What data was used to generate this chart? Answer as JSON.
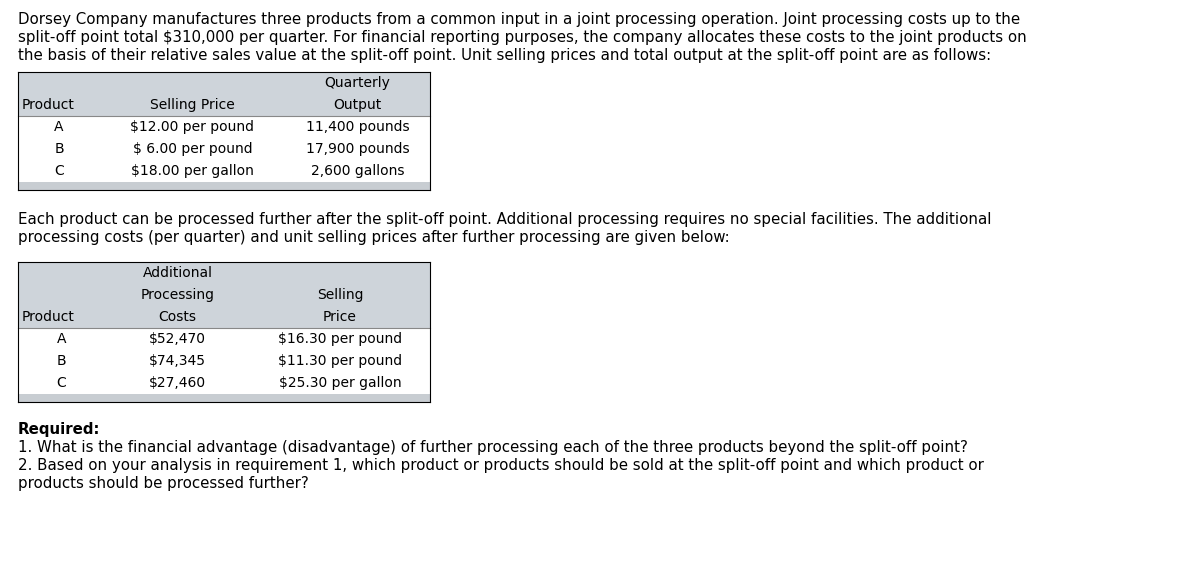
{
  "intro_text_lines": [
    "Dorsey Company manufactures three products from a common input in a joint processing operation. Joint processing costs up to the",
    "split-off point total $310,000 per quarter. For financial reporting purposes, the company allocates these costs to the joint products on",
    "the basis of their relative sales value at the split-off point. Unit selling prices and total output at the split-off point are as follows:"
  ],
  "table1_rows": [
    [
      "A",
      "$12.00 per pound",
      "11,400 pounds"
    ],
    [
      "B",
      "$ 6.00 per pound",
      "17,900 pounds"
    ],
    [
      "C",
      "$18.00 per gallon",
      "2,600 gallons"
    ]
  ],
  "middle_text_lines": [
    "Each product can be processed further after the split-off point. Additional processing requires no special facilities. The additional",
    "processing costs (per quarter) and unit selling prices after further processing are given below:"
  ],
  "table2_rows": [
    [
      "A",
      "$52,470",
      "$16.30 per pound"
    ],
    [
      "B",
      "$74,345",
      "$11.30 per pound"
    ],
    [
      "C",
      "$27,460",
      "$25.30 per gallon"
    ]
  ],
  "required_bold": "Required:",
  "required_lines": [
    "1. What is the financial advantage (disadvantage) of further processing each of the three products beyond the split-off point?",
    "2. Based on your analysis in requirement 1, which product or products should be sold at the split-off point and which product or",
    "products should be processed further?"
  ],
  "bg_color": "#ffffff",
  "table_header_bg": "#ced4da",
  "table_footer_bg": "#c8cdd2"
}
